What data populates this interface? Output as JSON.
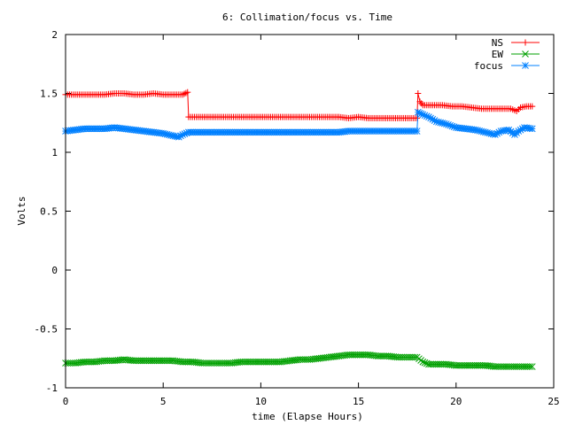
{
  "chart_data": {
    "type": "line",
    "title": "6: Collimation/focus vs. Time",
    "xlabel": "time (Elapse Hours)",
    "ylabel": "Volts",
    "xlim": [
      0,
      25
    ],
    "ylim": [
      -1,
      2
    ],
    "x_ticks": [
      0,
      5,
      10,
      15,
      20,
      25
    ],
    "x_tick_labels": [
      "0",
      "5",
      "10",
      "15",
      "20",
      "25"
    ],
    "y_ticks": [
      -1,
      -0.5,
      0,
      0.5,
      1,
      1.5,
      2
    ],
    "y_tick_labels": [
      "-1",
      "-0.5",
      "0",
      "0.5",
      "1",
      "1.5",
      "2"
    ],
    "grid": false,
    "legend_position": "top-right",
    "series": [
      {
        "name": "NS",
        "color": "#ff0000",
        "marker": "plus",
        "points": [
          [
            0.0,
            1.49
          ],
          [
            0.5,
            1.49
          ],
          [
            1.0,
            1.49
          ],
          [
            1.5,
            1.49
          ],
          [
            2.0,
            1.49
          ],
          [
            2.5,
            1.5
          ],
          [
            3.0,
            1.5
          ],
          [
            3.5,
            1.49
          ],
          [
            4.0,
            1.49
          ],
          [
            4.5,
            1.5
          ],
          [
            5.0,
            1.49
          ],
          [
            5.5,
            1.49
          ],
          [
            6.0,
            1.49
          ],
          [
            6.25,
            1.51
          ],
          [
            6.3,
            1.3
          ],
          [
            7.0,
            1.3
          ],
          [
            8.0,
            1.3
          ],
          [
            9.0,
            1.3
          ],
          [
            10.0,
            1.3
          ],
          [
            11.0,
            1.3
          ],
          [
            12.0,
            1.3
          ],
          [
            13.0,
            1.3
          ],
          [
            14.0,
            1.3
          ],
          [
            14.5,
            1.29
          ],
          [
            15.0,
            1.3
          ],
          [
            15.5,
            1.29
          ],
          [
            16.0,
            1.29
          ],
          [
            16.5,
            1.29
          ],
          [
            17.0,
            1.29
          ],
          [
            17.5,
            1.29
          ],
          [
            18.0,
            1.29
          ],
          [
            18.05,
            1.5
          ],
          [
            18.15,
            1.43
          ],
          [
            18.3,
            1.4
          ],
          [
            18.8,
            1.4
          ],
          [
            19.3,
            1.4
          ],
          [
            19.8,
            1.39
          ],
          [
            20.3,
            1.39
          ],
          [
            20.8,
            1.38
          ],
          [
            21.3,
            1.37
          ],
          [
            21.8,
            1.37
          ],
          [
            22.3,
            1.37
          ],
          [
            22.8,
            1.37
          ],
          [
            23.1,
            1.35
          ],
          [
            23.3,
            1.38
          ],
          [
            23.6,
            1.39
          ],
          [
            23.9,
            1.39
          ]
        ]
      },
      {
        "name": "EW",
        "color": "#00a000",
        "marker": "cross",
        "points": [
          [
            0.0,
            -0.79
          ],
          [
            0.5,
            -0.79
          ],
          [
            1.0,
            -0.78
          ],
          [
            1.5,
            -0.78
          ],
          [
            2.0,
            -0.77
          ],
          [
            2.5,
            -0.77
          ],
          [
            3.0,
            -0.76
          ],
          [
            3.5,
            -0.77
          ],
          [
            4.0,
            -0.77
          ],
          [
            4.5,
            -0.77
          ],
          [
            5.0,
            -0.77
          ],
          [
            5.5,
            -0.77
          ],
          [
            6.0,
            -0.78
          ],
          [
            6.5,
            -0.78
          ],
          [
            7.0,
            -0.79
          ],
          [
            7.5,
            -0.79
          ],
          [
            8.0,
            -0.79
          ],
          [
            8.5,
            -0.79
          ],
          [
            9.0,
            -0.78
          ],
          [
            9.5,
            -0.78
          ],
          [
            10.0,
            -0.78
          ],
          [
            10.5,
            -0.78
          ],
          [
            11.0,
            -0.78
          ],
          [
            11.5,
            -0.77
          ],
          [
            12.0,
            -0.76
          ],
          [
            12.5,
            -0.76
          ],
          [
            13.0,
            -0.75
          ],
          [
            13.5,
            -0.74
          ],
          [
            14.0,
            -0.73
          ],
          [
            14.5,
            -0.72
          ],
          [
            15.0,
            -0.72
          ],
          [
            15.5,
            -0.72
          ],
          [
            16.0,
            -0.73
          ],
          [
            16.5,
            -0.73
          ],
          [
            17.0,
            -0.74
          ],
          [
            17.5,
            -0.74
          ],
          [
            18.0,
            -0.74
          ],
          [
            18.3,
            -0.78
          ],
          [
            18.6,
            -0.8
          ],
          [
            19.0,
            -0.8
          ],
          [
            19.5,
            -0.8
          ],
          [
            20.0,
            -0.81
          ],
          [
            20.5,
            -0.81
          ],
          [
            21.0,
            -0.81
          ],
          [
            21.5,
            -0.81
          ],
          [
            22.0,
            -0.82
          ],
          [
            22.5,
            -0.82
          ],
          [
            23.0,
            -0.82
          ],
          [
            23.5,
            -0.82
          ],
          [
            23.9,
            -0.82
          ]
        ]
      },
      {
        "name": "focus",
        "color": "#0080ff",
        "marker": "star",
        "points": [
          [
            0.0,
            1.18
          ],
          [
            0.5,
            1.19
          ],
          [
            1.0,
            1.2
          ],
          [
            1.5,
            1.2
          ],
          [
            2.0,
            1.2
          ],
          [
            2.5,
            1.21
          ],
          [
            3.0,
            1.2
          ],
          [
            3.5,
            1.19
          ],
          [
            4.0,
            1.18
          ],
          [
            4.5,
            1.17
          ],
          [
            5.0,
            1.16
          ],
          [
            5.5,
            1.14
          ],
          [
            5.8,
            1.13
          ],
          [
            6.0,
            1.15
          ],
          [
            6.3,
            1.17
          ],
          [
            7.0,
            1.17
          ],
          [
            8.0,
            1.17
          ],
          [
            9.0,
            1.17
          ],
          [
            10.0,
            1.17
          ],
          [
            11.0,
            1.17
          ],
          [
            12.0,
            1.17
          ],
          [
            13.0,
            1.17
          ],
          [
            14.0,
            1.17
          ],
          [
            14.5,
            1.18
          ],
          [
            15.0,
            1.18
          ],
          [
            15.5,
            1.18
          ],
          [
            16.0,
            1.18
          ],
          [
            17.0,
            1.18
          ],
          [
            18.0,
            1.18
          ],
          [
            18.05,
            1.34
          ],
          [
            18.3,
            1.32
          ],
          [
            18.6,
            1.3
          ],
          [
            19.0,
            1.26
          ],
          [
            19.5,
            1.24
          ],
          [
            20.0,
            1.21
          ],
          [
            20.5,
            1.2
          ],
          [
            21.0,
            1.19
          ],
          [
            21.5,
            1.17
          ],
          [
            22.0,
            1.15
          ],
          [
            22.3,
            1.18
          ],
          [
            22.7,
            1.19
          ],
          [
            23.0,
            1.15
          ],
          [
            23.2,
            1.18
          ],
          [
            23.5,
            1.21
          ],
          [
            23.9,
            1.2
          ]
        ]
      }
    ]
  }
}
